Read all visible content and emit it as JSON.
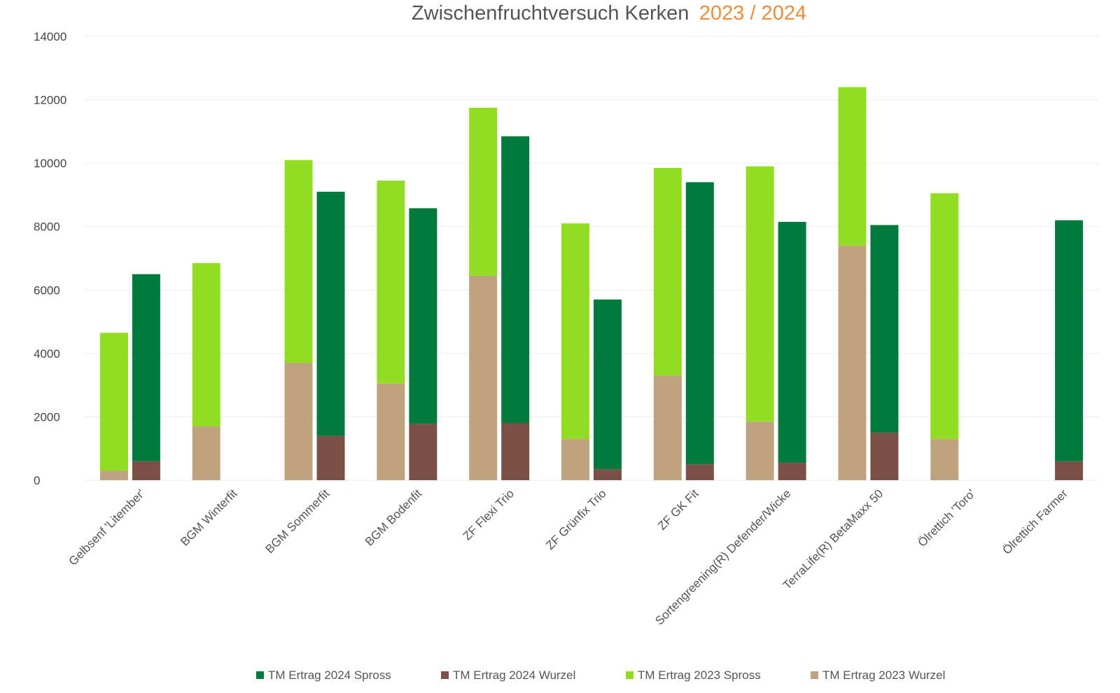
{
  "chart_data": {
    "type": "bar",
    "stacked": true,
    "title": "Zwischenfruchtversuch Kerken",
    "title_accent": "2023 / 2024",
    "xlabel": "",
    "ylabel": "",
    "ylim": [
      0,
      14000
    ],
    "yticks": [
      0,
      2000,
      4000,
      6000,
      8000,
      10000,
      12000,
      14000
    ],
    "grid": true,
    "legend_position": "bottom",
    "categories": [
      "Gelbsenf 'Litember'",
      "BGM Winterfit",
      "BGM Sommerfit",
      "BGM Bodenfit",
      "ZF Flexi Trio",
      "ZF Grünfix Trio",
      "ZF GK Fit",
      "Sortengreening(R) Defender/Wicke",
      "TerraLife(R) BetaMaxx 50",
      "Ölrettich 'Toro'",
      "Ölrettich Farmer"
    ],
    "series": [
      {
        "name": "TM Ertrag 2024 Spross",
        "stack": "2024",
        "color": "#007a3d",
        "values": [
          5900,
          null,
          7700,
          6800,
          9050,
          5350,
          8900,
          7600,
          6550,
          null,
          7600
        ]
      },
      {
        "name": "TM Ertrag 2024 Wurzel",
        "stack": "2024",
        "color": "#7b5147",
        "values": [
          600,
          null,
          1400,
          1780,
          1800,
          350,
          500,
          550,
          1500,
          null,
          600
        ]
      },
      {
        "name": "TM Ertrag 2023 Spross",
        "stack": "2023",
        "color": "#92dc22",
        "values": [
          4350,
          5150,
          6400,
          6400,
          5300,
          6800,
          6550,
          8050,
          5000,
          7750,
          null
        ]
      },
      {
        "name": "TM Ertrag 2023 Wurzel",
        "stack": "2023",
        "color": "#bfa280",
        "values": [
          300,
          1700,
          3700,
          3050,
          6450,
          1300,
          3300,
          1850,
          7400,
          1300,
          null
        ]
      }
    ],
    "legend_order": [
      "TM Ertrag 2024 Spross",
      "TM Ertrag 2024 Wurzel",
      "TM Ertrag 2023 Spross",
      "TM Ertrag 2023 Wurzel"
    ]
  }
}
